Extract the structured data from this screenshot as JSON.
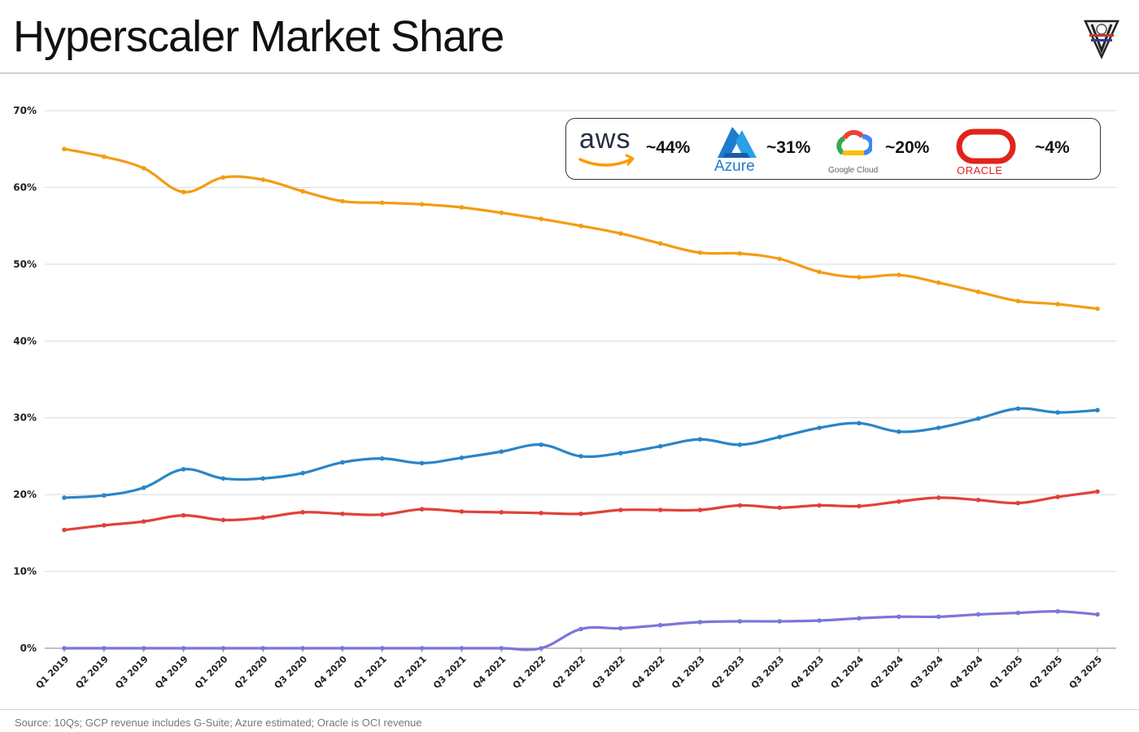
{
  "page": {
    "title": "Hyperscaler Market Share",
    "footnote": "Source: 10Qs; GCP revenue includes G-Suite; Azure estimated; Oracle is OCI revenue"
  },
  "legend": {
    "items": [
      {
        "brand": "aws",
        "logo_text": "aws",
        "value_label": "~44%",
        "color": "#f39c12"
      },
      {
        "brand": "azure",
        "logo_text": "Azure",
        "value_label": "~31%",
        "color": "#2a85c8"
      },
      {
        "brand": "google-cloud",
        "logo_text": "Google Cloud",
        "value_label": "~20%",
        "color": "#e0413a"
      },
      {
        "brand": "oracle",
        "logo_text": "ORACLE",
        "value_label": "~4%",
        "color": "#e2231a"
      }
    ]
  },
  "chart_data": {
    "type": "line",
    "title": "Hyperscaler Market Share",
    "xlabel": "",
    "ylabel": "",
    "ylim": [
      0,
      70
    ],
    "yticks": [
      0,
      10,
      20,
      30,
      40,
      50,
      60,
      70
    ],
    "ytick_labels": [
      "0%",
      "10%",
      "20%",
      "30%",
      "40%",
      "50%",
      "60%",
      "70%"
    ],
    "grid": true,
    "categories": [
      "Q1 2019",
      "Q2 2019",
      "Q3 2019",
      "Q4 2019",
      "Q1 2020",
      "Q2 2020",
      "Q3 2020",
      "Q4 2020",
      "Q1 2021",
      "Q2 2021",
      "Q3 2021",
      "Q4 2021",
      "Q1 2022",
      "Q2 2022",
      "Q3 2022",
      "Q4 2022",
      "Q1 2023",
      "Q2 2023",
      "Q3 2023",
      "Q4 2023",
      "Q1 2024",
      "Q2 2024",
      "Q3 2024",
      "Q4 2024",
      "Q1 2025",
      "Q2 2025",
      "Q3 2025"
    ],
    "series": [
      {
        "name": "AWS",
        "color": "#f39c12",
        "values": [
          65.0,
          64.0,
          62.5,
          59.4,
          61.3,
          61.0,
          59.5,
          58.2,
          58.0,
          57.8,
          57.4,
          56.7,
          55.9,
          55.0,
          54.0,
          52.7,
          51.5,
          51.4,
          50.7,
          49.0,
          48.3,
          48.6,
          47.6,
          46.4,
          45.2,
          44.8,
          44.2
        ]
      },
      {
        "name": "Azure",
        "color": "#2a85c8",
        "values": [
          19.6,
          19.9,
          20.9,
          23.3,
          22.1,
          22.1,
          22.8,
          24.2,
          24.7,
          24.1,
          24.8,
          25.6,
          26.5,
          25.0,
          25.4,
          26.3,
          27.2,
          26.5,
          27.5,
          28.7,
          29.3,
          28.2,
          28.7,
          29.9,
          31.2,
          30.7,
          31.0
        ]
      },
      {
        "name": "Google Cloud",
        "color": "#e0413a",
        "values": [
          15.4,
          16.0,
          16.5,
          17.3,
          16.7,
          17.0,
          17.7,
          17.5,
          17.4,
          18.1,
          17.8,
          17.7,
          17.6,
          17.5,
          18.0,
          18.0,
          18.0,
          18.6,
          18.3,
          18.6,
          18.5,
          19.1,
          19.6,
          19.3,
          18.9,
          19.7,
          20.4
        ]
      },
      {
        "name": "Oracle",
        "color": "#7b76d9",
        "values": [
          0.0,
          0.0,
          0.0,
          0.0,
          0.0,
          0.0,
          0.0,
          0.0,
          0.0,
          0.0,
          0.0,
          0.0,
          0.0,
          2.5,
          2.6,
          3.0,
          3.4,
          3.5,
          3.5,
          3.6,
          3.9,
          4.1,
          4.1,
          4.4,
          4.6,
          4.8,
          4.4
        ]
      }
    ]
  }
}
